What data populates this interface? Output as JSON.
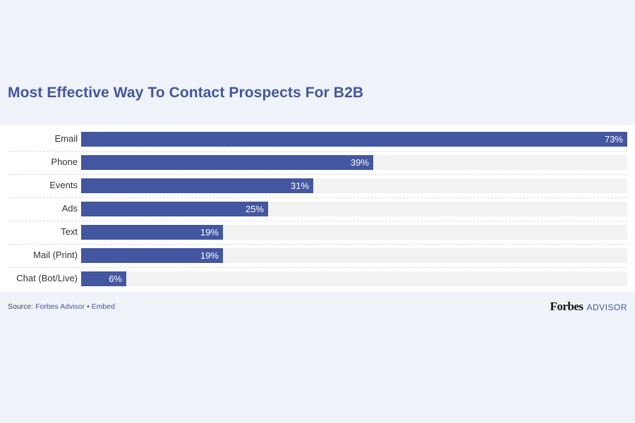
{
  "chart_data": {
    "type": "bar",
    "orientation": "horizontal",
    "title": "Most Effective Way To Contact Prospects For B2B",
    "categories": [
      "Email",
      "Phone",
      "Events",
      "Ads",
      "Text",
      "Mail (Print)",
      "Chat (Bot/Live)"
    ],
    "values": [
      73,
      39,
      31,
      25,
      19,
      19,
      6
    ],
    "value_labels": [
      "73%",
      "39%",
      "31%",
      "25%",
      "19%",
      "19%",
      "6%"
    ],
    "unit": "%",
    "xlim": [
      0,
      73
    ],
    "xlabel": "",
    "ylabel": "",
    "grid": false,
    "bar_color": "#4356a0",
    "track_color": "#f2f2f2"
  },
  "footer": {
    "source_label": "Source:",
    "source_link": "Forbes Advisor",
    "separator": "•",
    "embed_link": "Embed"
  },
  "brand": {
    "name": "Forbes",
    "sub": "ADVISOR"
  }
}
